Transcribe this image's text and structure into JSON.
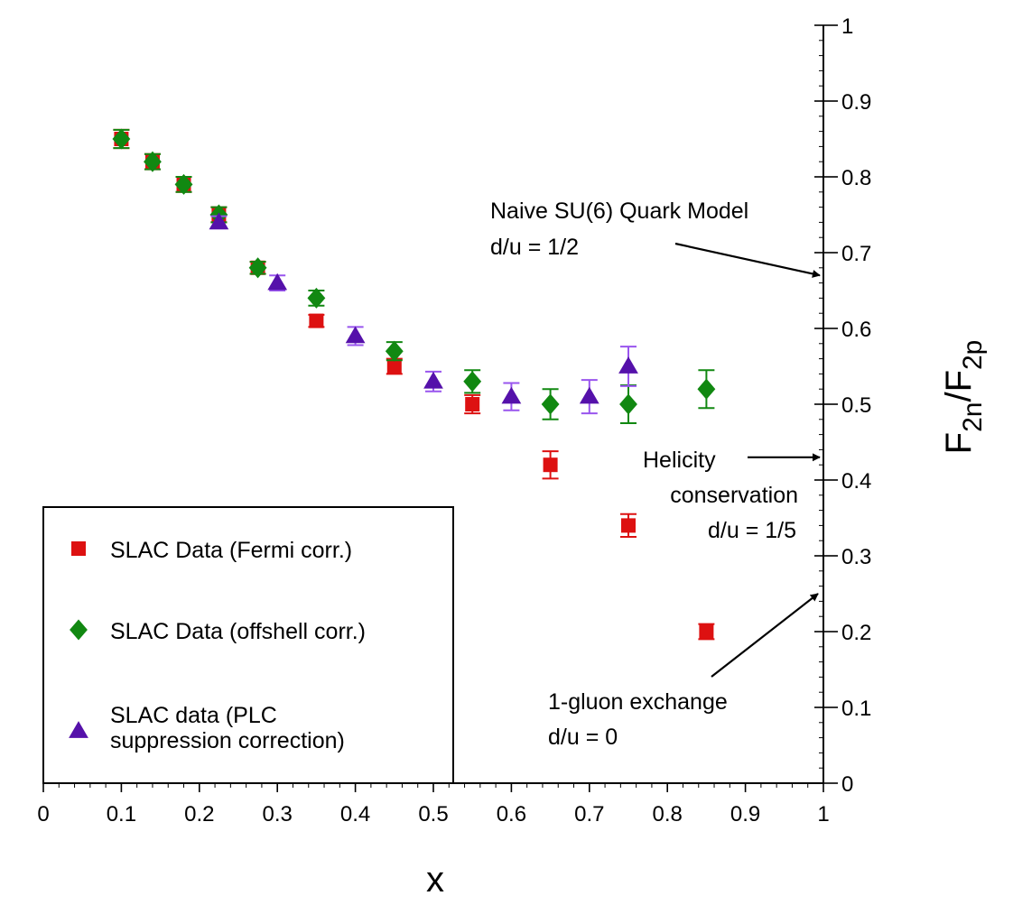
{
  "chart_data": {
    "type": "scatter",
    "title": "",
    "xlabel": "x",
    "ylabel": {
      "main": "F",
      "sub1": "2n",
      "sep": "/F",
      "sub2": "2p"
    },
    "xlim": [
      0,
      1
    ],
    "ylim": [
      0,
      1
    ],
    "x_ticks": [
      "0",
      "0.1",
      "0.2",
      "0.3",
      "0.4",
      "0.5",
      "0.6",
      "0.7",
      "0.8",
      "0.9",
      "1"
    ],
    "y_ticks": [
      "0",
      "0.1",
      "0.2",
      "0.3",
      "0.4",
      "0.5",
      "0.6",
      "0.7",
      "0.8",
      "0.9",
      "1"
    ],
    "y_axis_side": "right",
    "grid": false,
    "legend_position": "bottom-left",
    "series": [
      {
        "name": "SLAC Data (Fermi corr.)",
        "marker": "square",
        "color": "#dd1111",
        "points": [
          {
            "x": 0.1,
            "y": 0.85,
            "err": 0.012
          },
          {
            "x": 0.14,
            "y": 0.82,
            "err": 0.01
          },
          {
            "x": 0.18,
            "y": 0.79,
            "err": 0.01
          },
          {
            "x": 0.225,
            "y": 0.75,
            "err": 0.01
          },
          {
            "x": 0.275,
            "y": 0.68,
            "err": 0.008
          },
          {
            "x": 0.35,
            "y": 0.61,
            "err": 0.008
          },
          {
            "x": 0.45,
            "y": 0.55,
            "err": 0.01
          },
          {
            "x": 0.55,
            "y": 0.5,
            "err": 0.012
          },
          {
            "x": 0.65,
            "y": 0.42,
            "err": 0.018
          },
          {
            "x": 0.75,
            "y": 0.34,
            "err": 0.015
          },
          {
            "x": 0.85,
            "y": 0.2,
            "err": 0.01
          }
        ]
      },
      {
        "name": "SLAC Data (offshell corr.)",
        "marker": "diamond",
        "color": "#118811",
        "points": [
          {
            "x": 0.1,
            "y": 0.85,
            "err": 0.012
          },
          {
            "x": 0.14,
            "y": 0.82,
            "err": 0.01
          },
          {
            "x": 0.18,
            "y": 0.79,
            "err": 0.01
          },
          {
            "x": 0.225,
            "y": 0.75,
            "err": 0.01
          },
          {
            "x": 0.275,
            "y": 0.68,
            "err": 0.008
          },
          {
            "x": 0.35,
            "y": 0.64,
            "err": 0.01
          },
          {
            "x": 0.45,
            "y": 0.57,
            "err": 0.012
          },
          {
            "x": 0.55,
            "y": 0.53,
            "err": 0.015
          },
          {
            "x": 0.65,
            "y": 0.5,
            "err": 0.02
          },
          {
            "x": 0.75,
            "y": 0.5,
            "err": 0.025
          },
          {
            "x": 0.85,
            "y": 0.52,
            "err": 0.025
          }
        ]
      },
      {
        "name": "SLAC data (PLC suppression correction)",
        "name_lines": [
          "SLAC data (PLC",
          "suppression correction)"
        ],
        "marker": "triangle",
        "color": "#5511aa",
        "errcolor": "#9955ee",
        "points": [
          {
            "x": 0.225,
            "y": 0.74,
            "err": 0.008
          },
          {
            "x": 0.3,
            "y": 0.66,
            "err": 0.01
          },
          {
            "x": 0.4,
            "y": 0.59,
            "err": 0.012
          },
          {
            "x": 0.5,
            "y": 0.53,
            "err": 0.013
          },
          {
            "x": 0.6,
            "y": 0.51,
            "err": 0.018
          },
          {
            "x": 0.7,
            "y": 0.51,
            "err": 0.022
          },
          {
            "x": 0.75,
            "y": 0.55,
            "err": 0.026
          }
        ]
      }
    ],
    "annotations": [
      {
        "key": "su6",
        "lines": [
          "Naive SU(6) Quark Model",
          "d/u = 1/2"
        ],
        "arrow_to_y": 0.67
      },
      {
        "key": "helicity",
        "lines": [
          "Helicity",
          "conservation",
          "d/u = 1/5"
        ],
        "arrow_to_y": 0.43
      },
      {
        "key": "gluon",
        "lines": [
          "1-gluon exchange",
          "d/u = 0"
        ],
        "arrow_to_y": 0.25
      }
    ]
  }
}
